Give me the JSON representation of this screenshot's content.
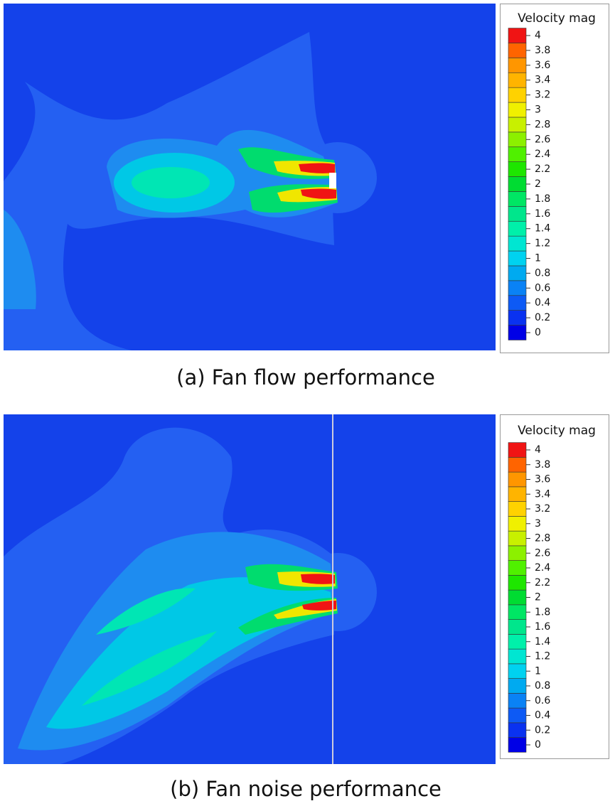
{
  "chart_data": [
    {
      "type": "contour",
      "caption": "(a) Fan flow performance",
      "colorbar": {
        "title": "Velocity mag",
        "levels": [
          0,
          0.2,
          0.4,
          0.6,
          0.8,
          1,
          1.2,
          1.4,
          1.6,
          1.8,
          2,
          2.2,
          2.4,
          2.6,
          2.8,
          3,
          3.2,
          3.4,
          3.6,
          3.8,
          4
        ],
        "colors": [
          "#0000e6",
          "#0a32f0",
          "#0d5af5",
          "#0a82f5",
          "#00aaf0",
          "#00d2f0",
          "#00e6d2",
          "#00f0aa",
          "#00e68c",
          "#00e664",
          "#00dc32",
          "#1ee600",
          "#50f000",
          "#8cf000",
          "#c8f000",
          "#f0f000",
          "#ffd200",
          "#ffb400",
          "#ff9600",
          "#ff6400",
          "#f01414"
        ]
      }
    },
    {
      "type": "contour",
      "caption": "(b) Fan noise performance",
      "colorbar": {
        "title": "Velocity mag",
        "levels": [
          0,
          0.2,
          0.4,
          0.6,
          0.8,
          1,
          1.2,
          1.4,
          1.6,
          1.8,
          2,
          2.2,
          2.4,
          2.6,
          2.8,
          3,
          3.2,
          3.4,
          3.6,
          3.8,
          4
        ],
        "colors": [
          "#0000e6",
          "#0a32f0",
          "#0d5af5",
          "#0a82f5",
          "#00aaf0",
          "#00d2f0",
          "#00e6d2",
          "#00f0aa",
          "#00e68c",
          "#00e664",
          "#00dc32",
          "#1ee600",
          "#50f000",
          "#8cf000",
          "#c8f000",
          "#f0f000",
          "#ffd200",
          "#ffb400",
          "#ff9600",
          "#ff6400",
          "#f01414"
        ]
      }
    }
  ]
}
